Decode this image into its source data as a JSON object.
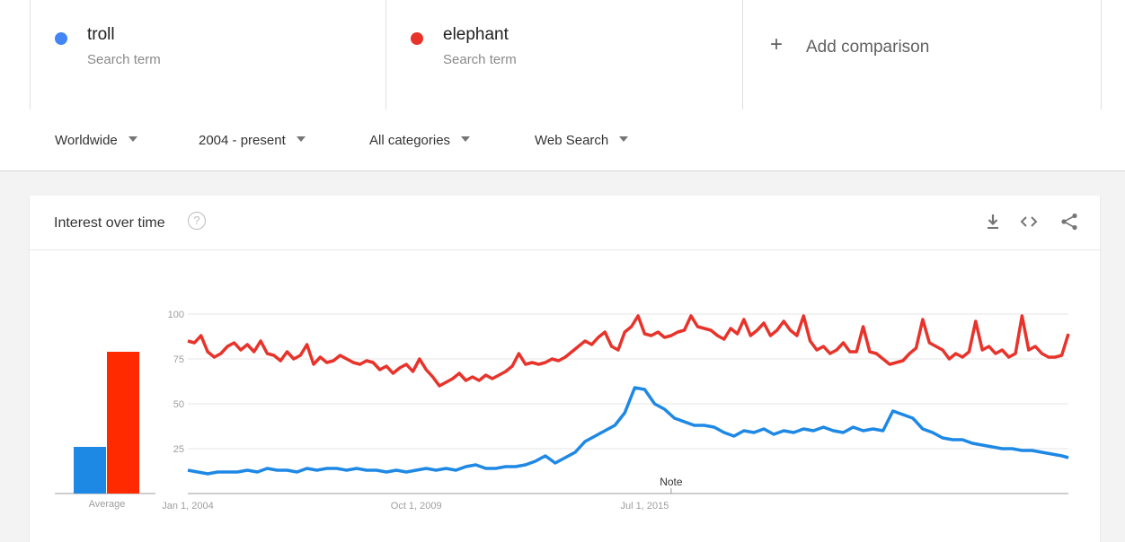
{
  "terms": [
    {
      "name": "troll",
      "subtitle": "Search term",
      "color": "#4285f4"
    },
    {
      "name": "elephant",
      "subtitle": "Search term",
      "color": "#e8332b"
    }
  ],
  "add_comparison": {
    "icon": "+",
    "label": "Add comparison"
  },
  "filters": [
    {
      "label": "Worldwide"
    },
    {
      "label": "2004 - present"
    },
    {
      "label": "All categories"
    },
    {
      "label": "Web Search"
    }
  ],
  "card": {
    "title": "Interest over time",
    "help_icon": "?",
    "actions": [
      "download-icon",
      "embed-icon",
      "share-icon"
    ]
  },
  "chart_data": {
    "type": "line",
    "title": "Interest over time",
    "xlabel": "",
    "ylabel": "",
    "ylim": [
      0,
      100
    ],
    "y_ticks": [
      25,
      50,
      75,
      100
    ],
    "x_ticks": [
      {
        "label": "Jan 1, 2004",
        "month_index": 0
      },
      {
        "label": "Oct 1, 2009",
        "month_index": 69
      },
      {
        "label": "Jul 1, 2015",
        "month_index": 138
      }
    ],
    "x_start": "2004-01",
    "annotation": {
      "label": "Note",
      "month_index": 146
    },
    "averages": {
      "label": "Average",
      "values": [
        {
          "series": "troll",
          "value": 26
        },
        {
          "series": "elephant",
          "value": 79
        }
      ]
    },
    "series": [
      {
        "name": "troll",
        "color": "#1e88e5",
        "values": [
          [
            0,
            13
          ],
          [
            3,
            12
          ],
          [
            6,
            11
          ],
          [
            9,
            12
          ],
          [
            12,
            12
          ],
          [
            15,
            12
          ],
          [
            18,
            13
          ],
          [
            21,
            12
          ],
          [
            24,
            14
          ],
          [
            27,
            13
          ],
          [
            30,
            13
          ],
          [
            33,
            12
          ],
          [
            36,
            14
          ],
          [
            39,
            13
          ],
          [
            42,
            14
          ],
          [
            45,
            14
          ],
          [
            48,
            13
          ],
          [
            51,
            14
          ],
          [
            54,
            13
          ],
          [
            57,
            13
          ],
          [
            60,
            12
          ],
          [
            63,
            13
          ],
          [
            66,
            12
          ],
          [
            69,
            13
          ],
          [
            72,
            14
          ],
          [
            75,
            13
          ],
          [
            78,
            14
          ],
          [
            81,
            13
          ],
          [
            84,
            15
          ],
          [
            87,
            16
          ],
          [
            90,
            14
          ],
          [
            93,
            14
          ],
          [
            96,
            15
          ],
          [
            99,
            15
          ],
          [
            102,
            16
          ],
          [
            105,
            18
          ],
          [
            108,
            21
          ],
          [
            111,
            17
          ],
          [
            114,
            20
          ],
          [
            117,
            23
          ],
          [
            120,
            29
          ],
          [
            123,
            32
          ],
          [
            126,
            35
          ],
          [
            129,
            38
          ],
          [
            132,
            45
          ],
          [
            135,
            59
          ],
          [
            138,
            58
          ],
          [
            141,
            50
          ],
          [
            144,
            47
          ],
          [
            147,
            42
          ],
          [
            150,
            40
          ],
          [
            153,
            38
          ],
          [
            156,
            38
          ],
          [
            159,
            37
          ],
          [
            162,
            34
          ],
          [
            165,
            32
          ],
          [
            168,
            35
          ],
          [
            171,
            34
          ],
          [
            174,
            36
          ],
          [
            177,
            33
          ],
          [
            180,
            35
          ],
          [
            183,
            34
          ],
          [
            186,
            36
          ],
          [
            189,
            35
          ],
          [
            192,
            37
          ],
          [
            195,
            35
          ],
          [
            198,
            34
          ],
          [
            201,
            37
          ],
          [
            204,
            35
          ],
          [
            207,
            36
          ],
          [
            210,
            35
          ],
          [
            213,
            46
          ],
          [
            216,
            44
          ],
          [
            219,
            42
          ],
          [
            222,
            36
          ],
          [
            225,
            34
          ],
          [
            228,
            31
          ],
          [
            231,
            30
          ],
          [
            234,
            30
          ],
          [
            237,
            28
          ],
          [
            240,
            27
          ],
          [
            243,
            26
          ],
          [
            246,
            25
          ],
          [
            249,
            25
          ],
          [
            252,
            24
          ],
          [
            255,
            24
          ],
          [
            258,
            23
          ],
          [
            261,
            22
          ],
          [
            264,
            21
          ],
          [
            266,
            20
          ]
        ]
      },
      {
        "name": "elephant",
        "color": "#e8332b",
        "values": [
          [
            0,
            85
          ],
          [
            2,
            84
          ],
          [
            4,
            88
          ],
          [
            6,
            79
          ],
          [
            8,
            76
          ],
          [
            10,
            78
          ],
          [
            12,
            82
          ],
          [
            14,
            84
          ],
          [
            16,
            80
          ],
          [
            18,
            83
          ],
          [
            20,
            79
          ],
          [
            22,
            85
          ],
          [
            24,
            78
          ],
          [
            26,
            77
          ],
          [
            28,
            74
          ],
          [
            30,
            79
          ],
          [
            32,
            75
          ],
          [
            34,
            77
          ],
          [
            36,
            83
          ],
          [
            38,
            72
          ],
          [
            40,
            76
          ],
          [
            42,
            73
          ],
          [
            44,
            74
          ],
          [
            46,
            77
          ],
          [
            48,
            75
          ],
          [
            50,
            73
          ],
          [
            52,
            72
          ],
          [
            54,
            74
          ],
          [
            56,
            73
          ],
          [
            58,
            69
          ],
          [
            60,
            71
          ],
          [
            62,
            67
          ],
          [
            64,
            70
          ],
          [
            66,
            72
          ],
          [
            68,
            68
          ],
          [
            70,
            75
          ],
          [
            72,
            69
          ],
          [
            74,
            65
          ],
          [
            76,
            60
          ],
          [
            78,
            62
          ],
          [
            80,
            64
          ],
          [
            82,
            67
          ],
          [
            84,
            63
          ],
          [
            86,
            65
          ],
          [
            88,
            63
          ],
          [
            90,
            66
          ],
          [
            92,
            64
          ],
          [
            94,
            66
          ],
          [
            96,
            68
          ],
          [
            98,
            71
          ],
          [
            100,
            78
          ],
          [
            102,
            72
          ],
          [
            104,
            73
          ],
          [
            106,
            72
          ],
          [
            108,
            73
          ],
          [
            110,
            75
          ],
          [
            112,
            74
          ],
          [
            114,
            76
          ],
          [
            116,
            79
          ],
          [
            118,
            82
          ],
          [
            120,
            85
          ],
          [
            122,
            83
          ],
          [
            124,
            87
          ],
          [
            126,
            90
          ],
          [
            128,
            82
          ],
          [
            130,
            80
          ],
          [
            132,
            90
          ],
          [
            134,
            93
          ],
          [
            136,
            99
          ],
          [
            138,
            89
          ],
          [
            140,
            88
          ],
          [
            142,
            90
          ],
          [
            144,
            87
          ],
          [
            146,
            88
          ],
          [
            148,
            90
          ],
          [
            150,
            91
          ],
          [
            152,
            99
          ],
          [
            154,
            93
          ],
          [
            156,
            92
          ],
          [
            158,
            91
          ],
          [
            160,
            88
          ],
          [
            162,
            86
          ],
          [
            164,
            92
          ],
          [
            166,
            89
          ],
          [
            168,
            97
          ],
          [
            170,
            88
          ],
          [
            172,
            91
          ],
          [
            174,
            95
          ],
          [
            176,
            88
          ],
          [
            178,
            91
          ],
          [
            180,
            96
          ],
          [
            182,
            91
          ],
          [
            184,
            88
          ],
          [
            186,
            99
          ],
          [
            188,
            85
          ],
          [
            190,
            80
          ],
          [
            192,
            82
          ],
          [
            194,
            78
          ],
          [
            196,
            80
          ],
          [
            198,
            84
          ],
          [
            200,
            79
          ],
          [
            202,
            79
          ],
          [
            204,
            93
          ],
          [
            206,
            79
          ],
          [
            208,
            78
          ],
          [
            210,
            75
          ],
          [
            212,
            72
          ],
          [
            214,
            73
          ],
          [
            216,
            74
          ],
          [
            218,
            78
          ],
          [
            220,
            81
          ],
          [
            222,
            97
          ],
          [
            224,
            84
          ],
          [
            226,
            82
          ],
          [
            228,
            80
          ],
          [
            230,
            75
          ],
          [
            232,
            78
          ],
          [
            234,
            76
          ],
          [
            236,
            79
          ],
          [
            238,
            96
          ],
          [
            240,
            80
          ],
          [
            242,
            82
          ],
          [
            244,
            78
          ],
          [
            246,
            80
          ],
          [
            248,
            76
          ],
          [
            250,
            78
          ],
          [
            252,
            99
          ],
          [
            254,
            80
          ],
          [
            256,
            82
          ],
          [
            258,
            78
          ],
          [
            260,
            76
          ],
          [
            262,
            76
          ],
          [
            264,
            77
          ],
          [
            266,
            89
          ]
        ]
      }
    ]
  }
}
